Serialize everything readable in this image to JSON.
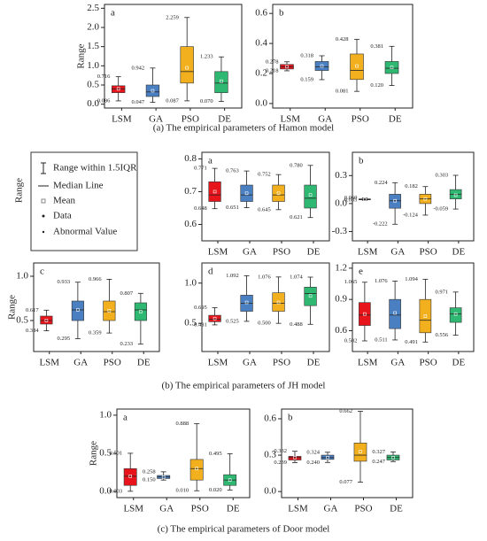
{
  "chart_data": [
    {
      "type": "box",
      "panel": "a",
      "ylabel": "Range",
      "categories": [
        "LSM",
        "GA",
        "PSO",
        "DE"
      ],
      "colors": [
        "#e8141b",
        "#4a7fc1",
        "#f2b01e",
        "#2eb872"
      ],
      "ylim": [
        -0.1,
        2.6
      ],
      "yticks": [
        {
          "value": 0,
          "label": "0.0"
        },
        0.5,
        {
          "value": 1,
          "label": "1.0"
        },
        1.5,
        {
          "value": 2,
          "label": "2.0"
        },
        2.5
      ],
      "q1": [
        0.3,
        0.2,
        0.55,
        0.3
      ],
      "median": [
        0.4,
        0.32,
        0.85,
        0.55
      ],
      "q3": [
        0.48,
        0.5,
        1.5,
        0.85
      ],
      "mean": [
        0.4,
        0.35,
        0.95,
        0.6
      ],
      "whisker_high": {
        "values": [
          0.716,
          0.942,
          2.259,
          1.233
        ],
        "value_labels": [
          "0.716",
          "0.942",
          "2.259",
          "1.233"
        ]
      },
      "whisker_low": {
        "values": [
          0.086,
          0.047,
          0.087,
          0.07
        ],
        "value_labels": [
          "0.086",
          "0.047",
          "0.087",
          "0.070"
        ]
      }
    },
    {
      "type": "box",
      "panel": "b",
      "categories": [
        "LSM",
        "GA",
        "PSO",
        "DE"
      ],
      "colors": [
        "#e8141b",
        "#4a7fc1",
        "#f2b01e",
        "#2eb872"
      ],
      "ylim": [
        -0.03,
        0.66
      ],
      "yticks": [
        {
          "value": 0,
          "label": "0.0"
        },
        0.2,
        0.4,
        0.6
      ],
      "q1": [
        0.23,
        0.22,
        0.16,
        0.2
      ],
      "median": [
        0.245,
        0.245,
        0.22,
        0.235
      ],
      "q3": [
        0.26,
        0.28,
        0.33,
        0.28
      ],
      "mean": [
        0.245,
        0.25,
        0.25,
        0.24
      ],
      "whisker_high": {
        "values": [
          0.278,
          0.318,
          0.428,
          0.381
        ],
        "value_labels": [
          "0.278",
          "0.318",
          "0.428",
          "0.381"
        ]
      },
      "whisker_low": {
        "values": [
          0.218,
          0.159,
          0.081,
          0.12
        ],
        "value_labels": [
          "0.218",
          "0.159",
          "0.081",
          "0.120"
        ]
      }
    },
    {
      "type": "box",
      "panel": "a",
      "ylabel": "Range",
      "categories": [
        "LSM",
        "GA",
        "PSO",
        "DE"
      ],
      "colors": [
        "#e8141b",
        "#4a7fc1",
        "#f2b01e",
        "#2eb872"
      ],
      "ylim": [
        0.55,
        0.82
      ],
      "yticks": [
        0.6,
        0.7,
        0.8
      ],
      "q1": [
        0.67,
        0.67,
        0.67,
        0.65
      ],
      "median": [
        0.69,
        0.69,
        0.69,
        0.68
      ],
      "q3": [
        0.73,
        0.72,
        0.72,
        0.72
      ],
      "mean": [
        0.7,
        0.695,
        0.695,
        0.69
      ],
      "whisker_high": {
        "values": [
          0.771,
          0.763,
          0.752,
          0.78
        ],
        "value_labels": [
          "0.771",
          "0.763",
          "0.752",
          "0.780"
        ]
      },
      "whisker_low": {
        "values": [
          0.648,
          0.651,
          0.645,
          0.621
        ],
        "value_labels": [
          "0.648",
          "0.651",
          "0.645",
          "0.621"
        ]
      }
    },
    {
      "type": "box",
      "panel": "b",
      "categories": [
        "LSM",
        "GA",
        "PSO",
        "DE"
      ],
      "colors": [
        "#e8141b",
        "#4a7fc1",
        "#f2b01e",
        "#2eb872"
      ],
      "ylim": [
        -0.4,
        0.55
      ],
      "yticks": [
        -0.3,
        {
          "value": 0,
          "label": "0.0"
        },
        0.3
      ],
      "q1": [
        0.04,
        -0.05,
        0.0,
        0.05
      ],
      "median": [
        0.045,
        0.03,
        0.05,
        0.1
      ],
      "q3": [
        0.05,
        0.1,
        0.1,
        0.15
      ],
      "mean": [
        0.045,
        0.03,
        0.05,
        0.09
      ],
      "whisker_high": {
        "values": [
          0.06,
          0.224,
          0.182,
          0.303
        ],
        "value_labels": [
          "0.060",
          "0.224",
          "0.182",
          "0.303"
        ]
      },
      "whisker_low": {
        "values": [
          0.035,
          -0.222,
          -0.124,
          -0.059
        ],
        "value_labels": [
          "0.035",
          "-0.222",
          "-0.124",
          "-0.059"
        ]
      }
    },
    {
      "type": "box",
      "panel": "c",
      "ylabel": "Range",
      "categories": [
        "LSM",
        "GA",
        "PSO",
        "DE"
      ],
      "colors": [
        "#e8141b",
        "#4a7fc1",
        "#f2b01e",
        "#2eb872"
      ],
      "ylim": [
        0.15,
        1.15
      ],
      "yticks": [
        0.5,
        {
          "value": 1,
          "label": "1.0"
        }
      ],
      "q1": [
        0.46,
        0.5,
        0.5,
        0.5
      ],
      "median": [
        0.5,
        0.62,
        0.6,
        0.62
      ],
      "q3": [
        0.55,
        0.72,
        0.72,
        0.7
      ],
      "mean": [
        0.5,
        0.62,
        0.61,
        0.6
      ],
      "whisker_high": {
        "values": [
          0.617,
          0.933,
          0.966,
          0.807
        ],
        "value_labels": [
          "0.617",
          "0.933",
          "0.966",
          "0.807"
        ]
      },
      "whisker_low": {
        "values": [
          0.384,
          0.295,
          0.359,
          0.233
        ],
        "value_labels": [
          "0.384",
          "0.295",
          "0.359",
          "0.233"
        ]
      }
    },
    {
      "type": "box",
      "panel": "d",
      "categories": [
        "LSM",
        "GA",
        "PSO",
        "DE"
      ],
      "colors": [
        "#e8141b",
        "#4a7fc1",
        "#f2b01e",
        "#2eb872"
      ],
      "ylim": [
        0.15,
        1.25
      ],
      "yticks": [
        0.5,
        {
          "value": 1,
          "label": "1.0"
        }
      ],
      "q1": [
        0.52,
        0.65,
        0.65,
        0.72
      ],
      "median": [
        0.55,
        0.75,
        0.75,
        0.87
      ],
      "q3": [
        0.6,
        0.85,
        0.88,
        0.95
      ],
      "mean": [
        0.56,
        0.76,
        0.76,
        0.84
      ],
      "whisker_high": {
        "values": [
          0.695,
          1.092,
          1.076,
          1.074
        ],
        "value_labels": [
          "0.695",
          "1.092",
          "1.076",
          "1.074"
        ]
      },
      "whisker_low": {
        "values": [
          0.481,
          0.525,
          0.5,
          0.488
        ],
        "value_labels": [
          "0.481",
          "0.525",
          "0.500",
          "0.488"
        ]
      }
    },
    {
      "type": "box",
      "panel": "e",
      "categories": [
        "LSM",
        "GA",
        "PSO",
        "DE"
      ],
      "colors": [
        "#e8141b",
        "#4a7fc1",
        "#f2b01e",
        "#2eb872"
      ],
      "ylim": [
        0.4,
        1.25
      ],
      "yticks": [
        0.6,
        0.9,
        1.2
      ],
      "q1": [
        0.65,
        0.62,
        0.58,
        0.68
      ],
      "median": [
        0.75,
        0.75,
        0.7,
        0.76
      ],
      "q3": [
        0.87,
        0.9,
        0.9,
        0.82
      ],
      "mean": [
        0.76,
        0.77,
        0.74,
        0.76
      ],
      "whisker_high": {
        "values": [
          1.065,
          1.076,
          1.094,
          0.971
        ],
        "value_labels": [
          "1.065",
          "1.076",
          "1.094",
          "0.971"
        ]
      },
      "whisker_low": {
        "values": [
          0.502,
          0.511,
          0.491,
          0.556
        ],
        "value_labels": [
          "0.502",
          "0.511",
          "0.491",
          "0.556"
        ]
      }
    },
    {
      "type": "box",
      "panel": "a",
      "ylabel": "Range",
      "categories": [
        "LSM",
        "GA",
        "PSO",
        "DE"
      ],
      "colors": [
        "#e8141b",
        "#4a7fc1",
        "#f2b01e",
        "#2eb872"
      ],
      "ylim": [
        -0.08,
        1.08
      ],
      "yticks": [
        {
          "value": 0,
          "label": "0.0"
        },
        0.5,
        {
          "value": 1,
          "label": "1.0"
        }
      ],
      "q1": [
        0.08,
        0.17,
        0.15,
        0.08
      ],
      "median": [
        0.2,
        0.19,
        0.3,
        0.15
      ],
      "q3": [
        0.3,
        0.21,
        0.42,
        0.22
      ],
      "mean": [
        0.2,
        0.19,
        0.3,
        0.15
      ],
      "whisker_high": {
        "values": [
          0.501,
          0.258,
          0.888,
          0.495
        ],
        "value_labels": [
          "0.501",
          "0.258",
          "0.888",
          "0.495"
        ]
      },
      "whisker_low": {
        "values": [
          0.003,
          0.15,
          0.01,
          0.02
        ],
        "value_labels": [
          "0.003",
          "0.150",
          "0.010",
          "0.020"
        ]
      }
    },
    {
      "type": "box",
      "panel": "b",
      "categories": [
        "LSM",
        "GA",
        "PSO",
        "DE"
      ],
      "colors": [
        "#e8141b",
        "#4a7fc1",
        "#f2b01e",
        "#2eb872"
      ],
      "ylim": [
        -0.05,
        0.68
      ],
      "yticks": [
        {
          "value": 0,
          "label": "0.0"
        },
        0.3,
        0.6
      ],
      "q1": [
        0.26,
        0.265,
        0.25,
        0.26
      ],
      "median": [
        0.28,
        0.28,
        0.3,
        0.28
      ],
      "q3": [
        0.29,
        0.3,
        0.4,
        0.3
      ],
      "mean": [
        0.28,
        0.28,
        0.33,
        0.28
      ],
      "whisker_high": {
        "values": [
          0.332,
          0.324,
          0.662,
          0.327
        ],
        "value_labels": [
          "0.332",
          "0.324",
          "0.662",
          "0.327"
        ]
      },
      "whisker_low": {
        "values": [
          0.239,
          0.24,
          0.077,
          0.247
        ],
        "value_labels": [
          "0.239",
          "0.240",
          "0.077",
          "0.247"
        ]
      }
    }
  ],
  "captions": [
    "(a) The empirical parameters of  Hamon model",
    "(b) The empirical parameters of JH model",
    "(c) The empirical parameters of Door model"
  ],
  "legend": [
    "Range within 1.5IQR",
    "Median Line",
    "Mean",
    "Data",
    "Abnormal Value"
  ]
}
